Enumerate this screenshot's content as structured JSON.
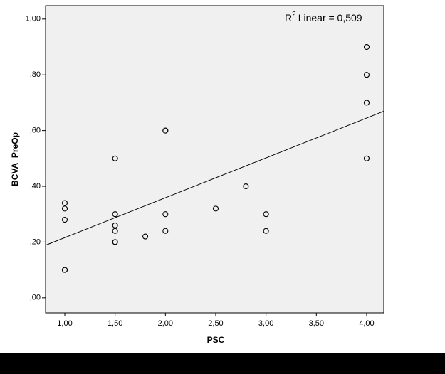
{
  "chart_data": {
    "type": "scatter",
    "x_label": "PSC",
    "y_label": "BCVA_PreOp",
    "annotation": {
      "base": "R",
      "sup": "2",
      "text": "Linear = 0,509"
    },
    "x": [
      1,
      1,
      1,
      1,
      1,
      1.5,
      1.5,
      1.5,
      1.5,
      1.5,
      1.5,
      1.8,
      2,
      2,
      2,
      2,
      2.5,
      2.8,
      3,
      3,
      4,
      4,
      4,
      4
    ],
    "y": [
      0.34,
      0.32,
      0.28,
      0.1,
      0.1,
      0.5,
      0.3,
      0.26,
      0.24,
      0.2,
      0.2,
      0.22,
      0.6,
      0.6,
      0.3,
      0.24,
      0.32,
      0.4,
      0.3,
      0.24,
      0.9,
      0.8,
      0.7,
      0.5
    ],
    "color": "#000000",
    "fit": {
      "intercept": 0.073,
      "slope": 0.143
    },
    "xlim": [
      0.809,
      4.17
    ],
    "ylim": [
      -0.054,
      1.048
    ],
    "xticks": [
      {
        "value": 1,
        "label": "1,00"
      },
      {
        "value": 1.5,
        "label": "1,50"
      },
      {
        "value": 2,
        "label": "2,00"
      },
      {
        "value": 2.5,
        "label": "2,50"
      },
      {
        "value": 3,
        "label": "3,00"
      },
      {
        "value": 3.5,
        "label": "3,50"
      },
      {
        "value": 4,
        "label": "4,00"
      }
    ],
    "yticks": [
      {
        "value": 0,
        "label": ",00"
      },
      {
        "value": 0.2,
        "label": ",20"
      },
      {
        "value": 0.4,
        "label": ",40"
      },
      {
        "value": 0.6,
        "label": ",60"
      },
      {
        "value": 0.8,
        "label": ",80"
      },
      {
        "value": 1,
        "label": "1,00"
      }
    ],
    "grid": false
  }
}
